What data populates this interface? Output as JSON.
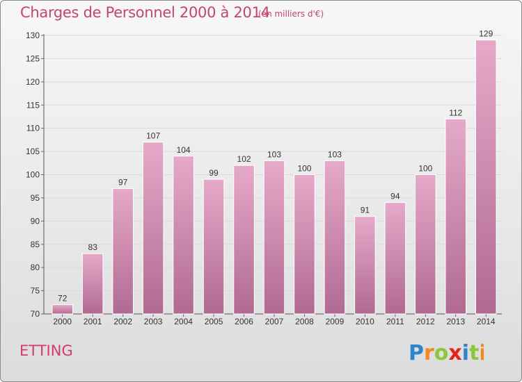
{
  "chart_title": "Charges de Personnel 2000 à 2014",
  "chart_subtitle": "(en milliers d'€)",
  "commune_name": "ETTING",
  "brand": {
    "name": "Proxiti",
    "letters": [
      {
        "ch": "P",
        "color": "#2e86c8"
      },
      {
        "ch": "r",
        "color": "#f08a1c"
      },
      {
        "ch": "o",
        "color": "#8cc63f"
      },
      {
        "ch": "x",
        "color": "#e2231a"
      },
      {
        "ch": "i",
        "color": "#2e86c8"
      },
      {
        "ch": "t",
        "color": "#8cc63f"
      },
      {
        "ch": "i",
        "color": "#f08a1c"
      }
    ]
  },
  "colors": {
    "bar_top": "#e6a9c9",
    "bar_bottom": "#b06a92",
    "title": "#c2456f"
  },
  "chart_data": {
    "type": "bar",
    "title": "Charges de Personnel 2000 à 2014",
    "subtitle": "(en milliers d'€)",
    "xlabel": "",
    "ylabel": "",
    "ylim": [
      70,
      130
    ],
    "yticks": [
      70,
      75,
      80,
      85,
      90,
      95,
      100,
      105,
      110,
      115,
      120,
      125,
      130
    ],
    "grid": true,
    "categories": [
      "2000",
      "2001",
      "2002",
      "2003",
      "2004",
      "2005",
      "2006",
      "2007",
      "2008",
      "2009",
      "2010",
      "2011",
      "2012",
      "2013",
      "2014"
    ],
    "values": [
      72,
      83,
      97,
      107,
      104,
      99,
      102,
      103,
      100,
      103,
      91,
      94,
      100,
      112,
      129
    ]
  }
}
